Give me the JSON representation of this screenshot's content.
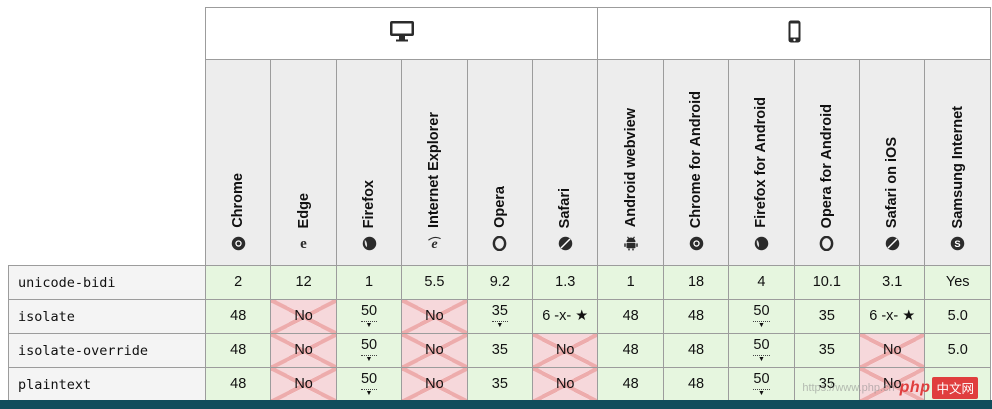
{
  "colors": {
    "border": "#9c9c9c",
    "header_bg": "#ededed",
    "label_bg": "#f4f4f4",
    "green": "#e6f6df",
    "red_bg": "#f6d8db",
    "x_color": "#edacac",
    "teal": "#104d5c",
    "logo_red": "#e03e3e"
  },
  "compat_table": {
    "groups": [
      {
        "name": "desktop",
        "icon": "desktop-icon",
        "span": 6
      },
      {
        "name": "mobile",
        "icon": "mobile-icon",
        "span": 6
      }
    ],
    "browsers": [
      {
        "label": "Chrome",
        "icon": "chrome-icon"
      },
      {
        "label": "Edge",
        "icon": "edge-icon"
      },
      {
        "label": "Firefox",
        "icon": "firefox-icon"
      },
      {
        "label": "Internet Explorer",
        "icon": "ie-icon"
      },
      {
        "label": "Opera",
        "icon": "opera-icon"
      },
      {
        "label": "Safari",
        "icon": "safari-icon"
      },
      {
        "label": "Android webview",
        "icon": "android-icon"
      },
      {
        "label": "Chrome for Android",
        "icon": "chrome-icon"
      },
      {
        "label": "Firefox for Android",
        "icon": "firefox-icon"
      },
      {
        "label": "Opera for Android",
        "icon": "opera-icon"
      },
      {
        "label": "Safari on iOS",
        "icon": "safari-icon"
      },
      {
        "label": "Samsung Internet",
        "icon": "samsung-icon"
      }
    ],
    "rows": [
      {
        "feature": "unicode-bidi",
        "cells": [
          {
            "text": "2",
            "support": "yes"
          },
          {
            "text": "12",
            "support": "yes"
          },
          {
            "text": "1",
            "support": "yes"
          },
          {
            "text": "5.5",
            "support": "yes"
          },
          {
            "text": "9.2",
            "support": "yes"
          },
          {
            "text": "1.3",
            "support": "yes"
          },
          {
            "text": "1",
            "support": "yes"
          },
          {
            "text": "18",
            "support": "yes"
          },
          {
            "text": "4",
            "support": "yes"
          },
          {
            "text": "10.1",
            "support": "yes"
          },
          {
            "text": "3.1",
            "support": "yes"
          },
          {
            "text": "Yes",
            "support": "yes"
          }
        ]
      },
      {
        "feature": "isolate",
        "cells": [
          {
            "text": "48",
            "support": "yes"
          },
          {
            "text": "No",
            "support": "no"
          },
          {
            "text": "50",
            "support": "yes",
            "note": true
          },
          {
            "text": "No",
            "support": "no"
          },
          {
            "text": "35",
            "support": "yes",
            "note": true
          },
          {
            "text": "6 -x- ★",
            "support": "yes"
          },
          {
            "text": "48",
            "support": "yes"
          },
          {
            "text": "48",
            "support": "yes"
          },
          {
            "text": "50",
            "support": "yes",
            "note": true
          },
          {
            "text": "35",
            "support": "yes"
          },
          {
            "text": "6 -x- ★",
            "support": "yes"
          },
          {
            "text": "5.0",
            "support": "yes"
          }
        ]
      },
      {
        "feature": "isolate-override",
        "cells": [
          {
            "text": "48",
            "support": "yes"
          },
          {
            "text": "No",
            "support": "no"
          },
          {
            "text": "50",
            "support": "yes",
            "note": true
          },
          {
            "text": "No",
            "support": "no"
          },
          {
            "text": "35",
            "support": "yes"
          },
          {
            "text": "No",
            "support": "no"
          },
          {
            "text": "48",
            "support": "yes"
          },
          {
            "text": "48",
            "support": "yes"
          },
          {
            "text": "50",
            "support": "yes",
            "note": true
          },
          {
            "text": "35",
            "support": "yes"
          },
          {
            "text": "No",
            "support": "no"
          },
          {
            "text": "5.0",
            "support": "yes"
          }
        ]
      },
      {
        "feature": "plaintext",
        "cells": [
          {
            "text": "48",
            "support": "yes"
          },
          {
            "text": "No",
            "support": "no"
          },
          {
            "text": "50",
            "support": "yes",
            "note": true
          },
          {
            "text": "No",
            "support": "no"
          },
          {
            "text": "35",
            "support": "yes"
          },
          {
            "text": "No",
            "support": "no"
          },
          {
            "text": "48",
            "support": "yes"
          },
          {
            "text": "48",
            "support": "yes"
          },
          {
            "text": "50",
            "support": "yes",
            "note": true
          },
          {
            "text": "35",
            "support": "yes"
          },
          {
            "text": "No",
            "support": "no"
          },
          {
            "text": "5.0",
            "support": "yes"
          }
        ]
      }
    ]
  },
  "watermark": {
    "url_text": "https://www.php.cn",
    "logo_prefix": "php",
    "logo_suffix": "中文网"
  }
}
